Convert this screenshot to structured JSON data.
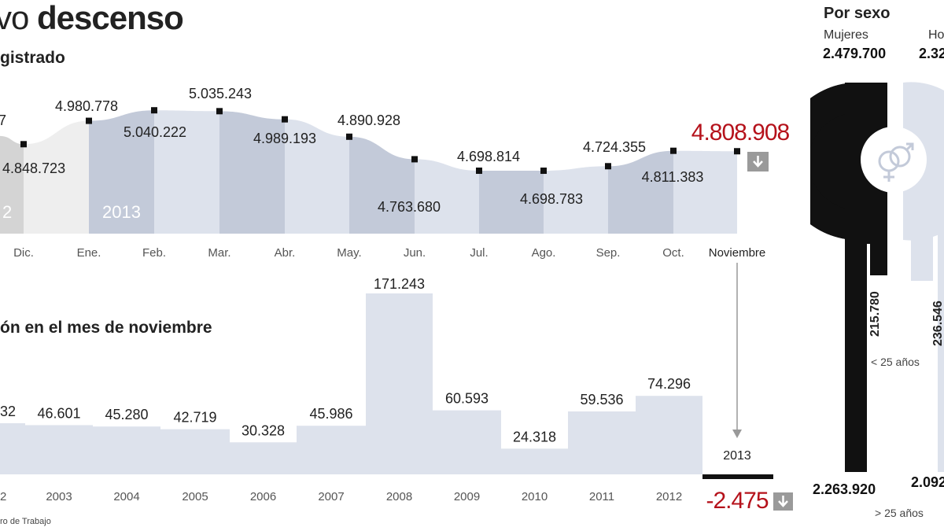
{
  "header": {
    "title_light": "vo",
    "title_bold": "descenso",
    "subtitle_top": "gistrado",
    "subtitle_bottom": "ón en el mes de noviembre",
    "source": "ro de Trabajo"
  },
  "chart_data": [
    {
      "type": "area",
      "title": "gistrado",
      "categories": [
        "Dic.",
        "Ene.",
        "Feb.",
        "Mar.",
        "Abr.",
        "May.",
        "Jun.",
        "Jul.",
        "Ago.",
        "Sep.",
        "Oct.",
        "Noviembre"
      ],
      "values": [
        4848723,
        4980778,
        5040222,
        5035243,
        4989193,
        4890928,
        4763680,
        4698814,
        4698783,
        4724355,
        4811383,
        4808908
      ],
      "labels": [
        "4.848.723",
        "4.980.778",
        "5.040.222",
        "5.035.243",
        "4.989.193",
        "4.890.928",
        "4.763.680",
        "4.698.814",
        "4.698.783",
        "4.724.355",
        "4.811.383",
        "4.808.908"
      ],
      "partial_labels": [
        "7"
      ],
      "year_labels": [
        "2",
        "2013"
      ],
      "highlight_value": "4.808.908",
      "highlight_color": "#b5121b",
      "trend": "down"
    },
    {
      "type": "bar",
      "title": "ón en el mes de noviembre",
      "categories": [
        "2",
        "2003",
        "2004",
        "2005",
        "2006",
        "2007",
        "2008",
        "2009",
        "2010",
        "2011",
        "2012",
        "2013"
      ],
      "values": [
        48432,
        46601,
        45280,
        42719,
        30328,
        45986,
        171243,
        60593,
        24318,
        59536,
        74296,
        -2475
      ],
      "labels": [
        "32",
        "46.601",
        "45.280",
        "42.719",
        "30.328",
        "45.986",
        "171.243",
        "60.593",
        "24.318",
        "59.536",
        "74.296",
        "-2.475"
      ],
      "highlight_color": "#b5121b",
      "trend": "down"
    }
  ],
  "por_sexo": {
    "title": "Por sexo",
    "mujeres_label": "Mujeres",
    "mujeres_total": "2.479.700",
    "hombres_label": "Ho",
    "hombres_total": "2.32",
    "mujeres_under25": "215.780",
    "hombres_under25": "236.546",
    "under25_label": "< 25 años",
    "mujeres_over25": "2.263.920",
    "hombres_over25": "2.092",
    "over25_label": "> 25 años"
  },
  "colors": {
    "band_dark": "#c3cad9",
    "band_light": "#dde2ec",
    "band_grey": "#d4d4d4",
    "band_lightgrey": "#eeeeee",
    "bar_fill": "#dde2ec",
    "negative_bar": "#111111",
    "accent_red": "#b5121b",
    "arrow_box": "#9a9a9a"
  }
}
